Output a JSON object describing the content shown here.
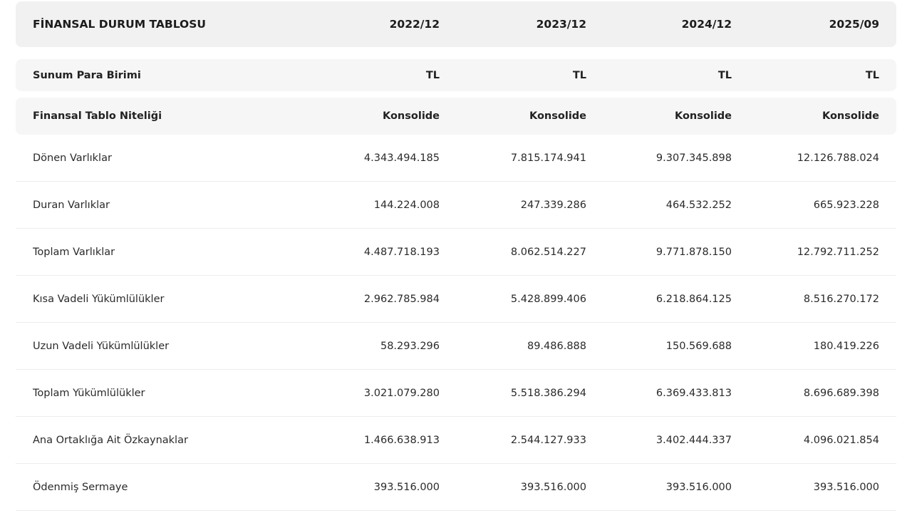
{
  "table": {
    "header": {
      "title": "FİNANSAL DURUM TABLOSU",
      "periods": [
        "2022/12",
        "2023/12",
        "2024/12",
        "2025/09"
      ]
    },
    "meta_rows": [
      {
        "label": "Sunum Para Birimi",
        "values": [
          "TL",
          "TL",
          "TL",
          "TL"
        ]
      },
      {
        "label": "Finansal Tablo Niteliği",
        "values": [
          "Konsolide",
          "Konsolide",
          "Konsolide",
          "Konsolide"
        ]
      }
    ],
    "rows": [
      {
        "label": "Dönen Varlıklar",
        "values": [
          "4.343.494.185",
          "7.815.174.941",
          "9.307.345.898",
          "12.126.788.024"
        ]
      },
      {
        "label": "Duran Varlıklar",
        "values": [
          "144.224.008",
          "247.339.286",
          "464.532.252",
          "665.923.228"
        ]
      },
      {
        "label": "Toplam Varlıklar",
        "values": [
          "4.487.718.193",
          "8.062.514.227",
          "9.771.878.150",
          "12.792.711.252"
        ]
      },
      {
        "label": "Kısa Vadeli Yükümlülükler",
        "values": [
          "2.962.785.984",
          "5.428.899.406",
          "6.218.864.125",
          "8.516.270.172"
        ]
      },
      {
        "label": "Uzun Vadeli Yükümlülükler",
        "values": [
          "58.293.296",
          "89.486.888",
          "150.569.688",
          "180.419.226"
        ]
      },
      {
        "label": "Toplam Yükümlülükler",
        "values": [
          "3.021.079.280",
          "5.518.386.294",
          "6.369.433.813",
          "8.696.689.398"
        ]
      },
      {
        "label": "Ana Ortaklığa Ait Özkaynaklar",
        "values": [
          "1.466.638.913",
          "2.544.127.933",
          "3.402.444.337",
          "4.096.021.854"
        ]
      },
      {
        "label": "Ödenmiş Sermaye",
        "values": [
          "393.516.000",
          "393.516.000",
          "393.516.000",
          "393.516.000"
        ]
      }
    ]
  }
}
